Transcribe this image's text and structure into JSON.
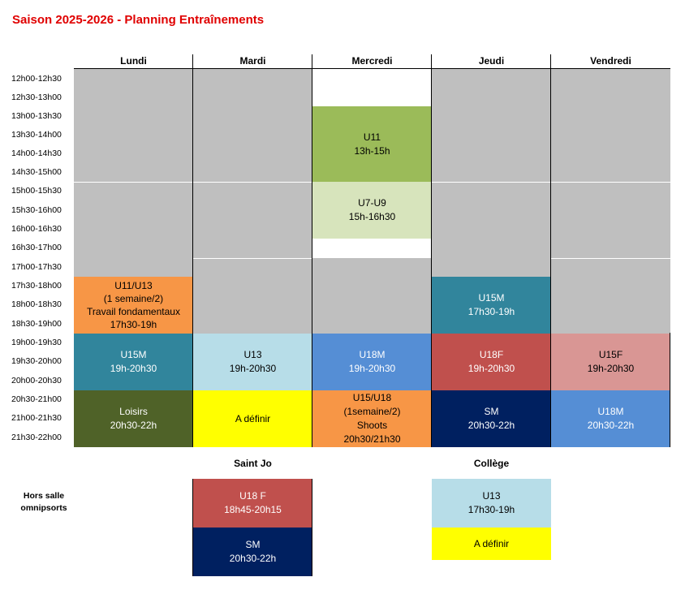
{
  "title": "Saison 2025-2026 - Planning Entraînements",
  "days": [
    "Lundi",
    "Mardi",
    "Mercredi",
    "Jeudi",
    "Vendredi"
  ],
  "time_slots": [
    "12h00-12h30",
    "12h30-13h00",
    "13h00-13h30",
    "13h30-14h00",
    "14h00-14h30",
    "14h30-15h00",
    "15h00-15h30",
    "15h30-16h00",
    "16h00-16h30",
    "16h30-17h00",
    "17h00-17h30",
    "17h30-18h00",
    "18h00-18h30",
    "18h30-19h00",
    "19h00-19h30",
    "19h30-20h00",
    "20h00-20h30",
    "20h30-21h00",
    "21h00-21h30",
    "21h30-22h00"
  ],
  "sessions": {
    "mer_u11": {
      "text": "U11\n13h-15h",
      "color": "#9bbb59"
    },
    "mer_u7u9": {
      "text": "U7-U9\n15h-16h30",
      "color": "#d7e4bc"
    },
    "lun_u11u13": {
      "text": "U11/U13\n(1 semaine/2)\nTravail fondamentaux\n17h30-19h",
      "color": "#f79646"
    },
    "jeu_u15m": {
      "text": "U15M\n17h30-19h",
      "color": "#31859c"
    },
    "lun_u15m": {
      "text": "U15M\n19h-20h30",
      "color": "#31859c"
    },
    "mar_u13": {
      "text": "U13\n19h-20h30",
      "color": "#b7dde8"
    },
    "mer_u18m": {
      "text": "U18M\n19h-20h30",
      "color": "#558ed5"
    },
    "jeu_u18f": {
      "text": "U18F\n19h-20h30",
      "color": "#c0504d"
    },
    "ven_u15f": {
      "text": "U15F\n19h-20h30",
      "color": "#d99694"
    },
    "lun_loisirs": {
      "text": "Loisirs\n20h30-22h",
      "color": "#4f6228"
    },
    "mar_adefinir": {
      "text": "A définir",
      "color": "#ffff00"
    },
    "mer_u15u18": {
      "text": "U15/U18\n(1semaine/2)\nShoots\n20h30/21h30",
      "color": "#f79646"
    },
    "jeu_sm": {
      "text": "SM\n20h30-22h",
      "color": "#002060"
    },
    "ven_u18m": {
      "text": "U18M\n20h30-22h",
      "color": "#558ed5"
    }
  },
  "off_site": {
    "label": "Hors salle omnipsorts",
    "saint_jo": {
      "header": "Saint Jo",
      "u18f": {
        "text": "U18 F\n18h45-20h15",
        "color": "#c0504d"
      },
      "sm": {
        "text": "SM\n20h30-22h",
        "color": "#002060"
      }
    },
    "college": {
      "header": "Collège",
      "u13": {
        "text": "U13\n17h30-19h",
        "color": "#b7dde8"
      },
      "adefinir": {
        "text": "A définir",
        "color": "#ffff00"
      }
    }
  }
}
